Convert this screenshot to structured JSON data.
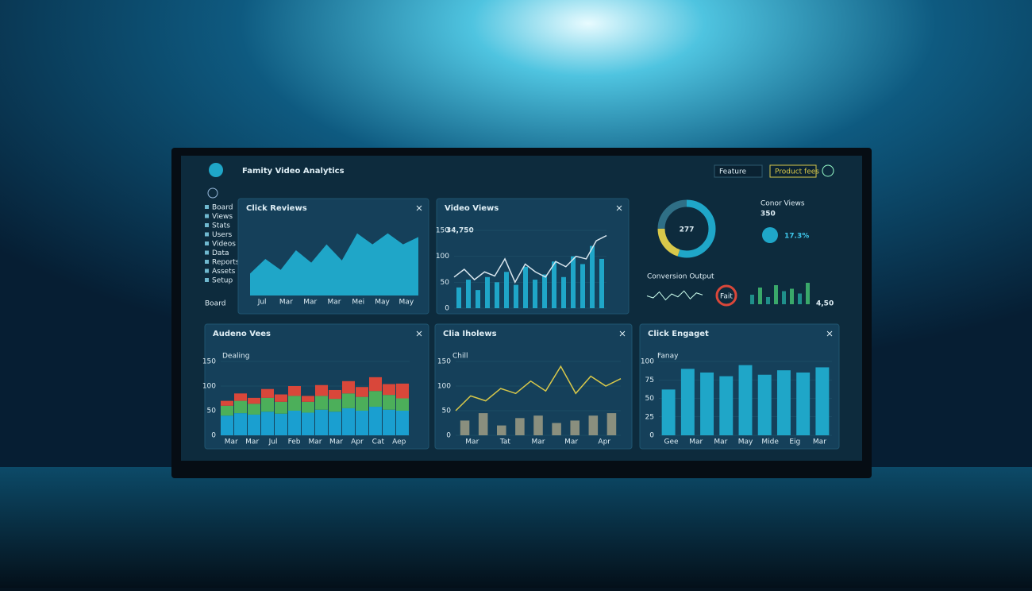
{
  "header": {
    "title": "Famity Video Analytics",
    "dropdown": "Feature",
    "button": "Product fees"
  },
  "sidebar": {
    "items": [
      "Board",
      "Views",
      "Stats",
      "Users",
      "Videos",
      "Data",
      "Reports",
      "Assets",
      "Setup"
    ],
    "footer": "Board"
  },
  "panels": [
    {
      "title": "Click Reviews",
      "kind": "area",
      "color": "#1fa6c8",
      "ylim": [
        0,
        100
      ],
      "values": [
        30,
        50,
        35,
        62,
        45,
        70,
        48,
        85,
        70,
        85,
        70,
        80
      ],
      "xlabels": [
        "Jul",
        "Mar",
        "Mar",
        "Mar",
        "Mei",
        "May",
        "May"
      ]
    },
    {
      "title": "Video Views",
      "kind": "barline",
      "metric": "34,750",
      "color": "#1fa6c8",
      "line_color": "#d9e6ee",
      "ylim": [
        0,
        150
      ],
      "yticks": [
        0,
        50,
        100,
        150
      ],
      "values": [
        40,
        55,
        35,
        60,
        50,
        70,
        45,
        80,
        55,
        65,
        90,
        60,
        100,
        85,
        120,
        95
      ],
      "line": [
        60,
        75,
        55,
        70,
        62,
        95,
        50,
        85,
        70,
        60,
        90,
        80,
        100,
        95,
        130,
        140
      ]
    },
    {
      "title": "Audeno Vees",
      "subtitle": "Dealing",
      "kind": "stacked",
      "ylim": [
        0,
        150
      ],
      "yticks": [
        0,
        50,
        100,
        150
      ],
      "xlabels": [
        "Mar",
        "Mar",
        "Jul",
        "Feb",
        "Mar",
        "Mar",
        "Apr",
        "Cat",
        "Aep"
      ],
      "series": [
        {
          "color": "#1a9fd0",
          "values": [
            40,
            45,
            42,
            48,
            44,
            50,
            46,
            52,
            48,
            55,
            50,
            58,
            52,
            50
          ]
        },
        {
          "color": "#4caf5a",
          "values": [
            20,
            25,
            22,
            28,
            24,
            30,
            22,
            28,
            26,
            30,
            28,
            32,
            30,
            25
          ]
        },
        {
          "color": "#d9473a",
          "values": [
            10,
            15,
            12,
            18,
            15,
            20,
            12,
            22,
            18,
            25,
            20,
            28,
            22,
            30
          ]
        }
      ]
    },
    {
      "title": "Clia Iholews",
      "subtitle": "Chill",
      "kind": "barline",
      "color": "#8a8f7e",
      "line_color": "#d8c84a",
      "ylim": [
        0,
        150
      ],
      "yticks": [
        0,
        50,
        100,
        150
      ],
      "values": [
        30,
        45,
        20,
        35,
        40,
        25,
        30,
        40,
        45
      ],
      "line": [
        50,
        80,
        70,
        95,
        85,
        110,
        90,
        140,
        85,
        120,
        100,
        115
      ],
      "xlabels": [
        "Mar",
        "Tat",
        "Mar",
        "Mar",
        "Apr"
      ]
    },
    {
      "title": "Click Engaget",
      "subtitle": "Fanay",
      "kind": "bars",
      "color": "#1fa6c8",
      "ylim": [
        0,
        100
      ],
      "yticks": [
        0,
        25,
        50,
        75,
        100
      ],
      "values": [
        62,
        90,
        85,
        80,
        95,
        82,
        88,
        85,
        92
      ],
      "xlabels": [
        "Gee",
        "Mar",
        "Mar",
        "May",
        "Mide",
        "Eig",
        "Mar"
      ]
    }
  ],
  "donut": {
    "value": "277",
    "segments": [
      55,
      20,
      25
    ],
    "colors": [
      "#1fa6c8",
      "#d8c84a",
      "#2f6f86"
    ]
  },
  "stat": {
    "label": "Conor Views",
    "value": "350",
    "change": "17.3%"
  },
  "conversion": {
    "label": "Conversion Output",
    "sparkline": [
      50,
      40,
      70,
      30,
      60,
      45,
      75,
      35,
      65,
      55
    ],
    "gauge": "Fait",
    "candles": [
      40,
      70,
      30,
      80,
      55,
      65,
      45,
      90
    ],
    "value": "4,50"
  }
}
